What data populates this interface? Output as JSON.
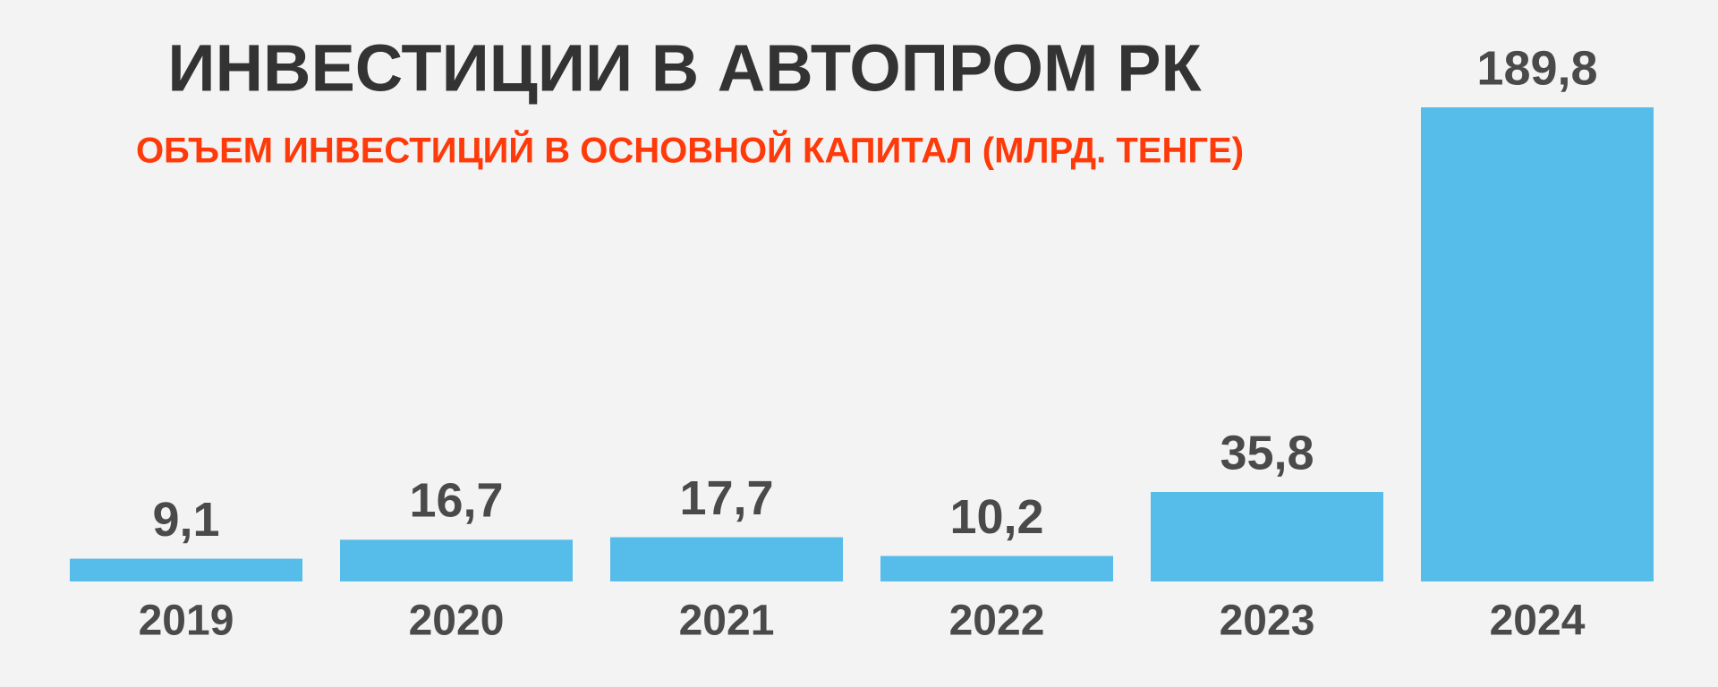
{
  "chart_data": {
    "type": "bar",
    "title": "ИНВЕСТИЦИИ В АВТОПРОМ РК",
    "subtitle": "ОБЪЕМ ИНВЕСТИЦИЙ В ОСНОВНОЙ КАПИТАЛ (МЛРД. ТЕНГЕ)",
    "categories": [
      "2019",
      "2020",
      "2021",
      "2022",
      "2023",
      "2024"
    ],
    "values": [
      9.1,
      16.7,
      17.7,
      10.2,
      35.8,
      189.8
    ],
    "value_labels": [
      "9,1",
      "16,7",
      "17,7",
      "10,2",
      "35,8",
      "189,8"
    ],
    "color": "#56bce9"
  }
}
